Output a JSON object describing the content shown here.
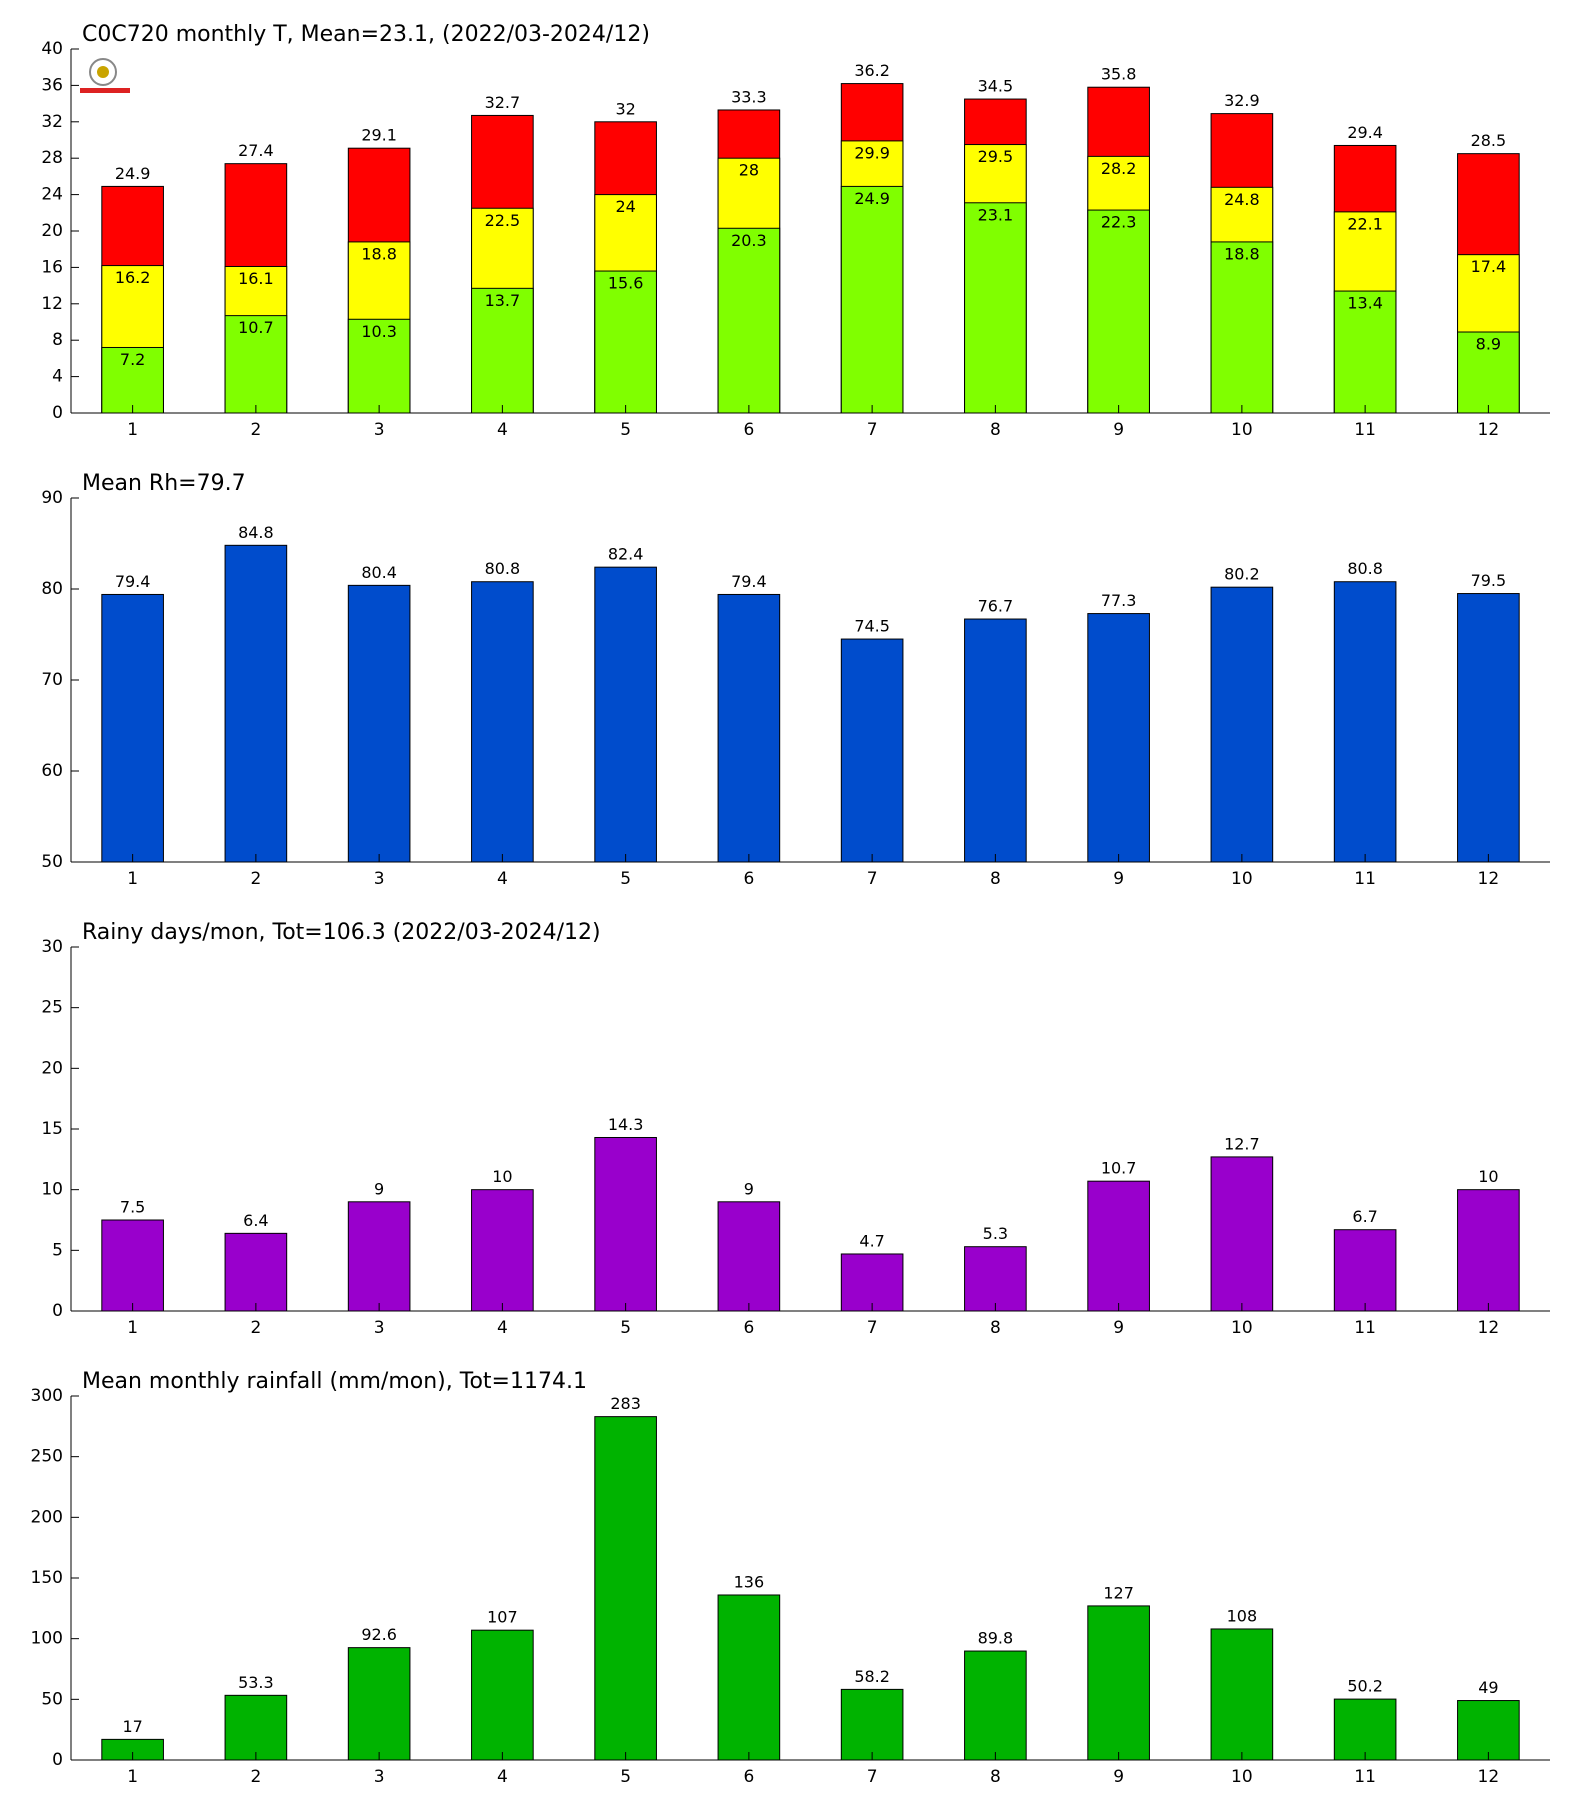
{
  "chart_data": [
    {
      "type": "bar",
      "title": "C0C720 monthly T, Mean=23.1, (2022/03-2024/12)",
      "categories": [
        "1",
        "2",
        "3",
        "4",
        "5",
        "6",
        "7",
        "8",
        "9",
        "10",
        "11",
        "12"
      ],
      "series": [
        {
          "color": "#80ff00",
          "values": [
            7.2,
            10.7,
            10.3,
            13.7,
            15.6,
            20.3,
            24.9,
            23.1,
            22.3,
            18.8,
            13.4,
            8.9
          ]
        },
        {
          "color": "#ffff00",
          "values": [
            16.2,
            16.1,
            18.8,
            22.5,
            24,
            28,
            29.9,
            29.5,
            28.2,
            24.8,
            22.1,
            17.4
          ]
        },
        {
          "color": "#ff0000",
          "values": [
            24.9,
            27.4,
            29.1,
            32.7,
            32,
            33.3,
            36.2,
            34.5,
            35.8,
            32.9,
            29.4,
            28.5
          ]
        }
      ],
      "ylim": [
        0,
        40
      ],
      "yticks": [
        0,
        4,
        8,
        12,
        16,
        20,
        24,
        28,
        32,
        36,
        40
      ]
    },
    {
      "type": "bar",
      "title": "Mean Rh=79.7",
      "categories": [
        "1",
        "2",
        "3",
        "4",
        "5",
        "6",
        "7",
        "8",
        "9",
        "10",
        "11",
        "12"
      ],
      "series": [
        {
          "color": "#004ccc",
          "values": [
            79.4,
            84.8,
            80.4,
            80.8,
            82.4,
            79.4,
            74.5,
            76.7,
            77.3,
            80.2,
            80.8,
            79.5
          ]
        }
      ],
      "ylim": [
        50,
        90
      ],
      "yticks": [
        50,
        60,
        70,
        80,
        90
      ]
    },
    {
      "type": "bar",
      "title": "Rainy days/mon, Tot=106.3 (2022/03-2024/12)",
      "categories": [
        "1",
        "2",
        "3",
        "4",
        "5",
        "6",
        "7",
        "8",
        "9",
        "10",
        "11",
        "12"
      ],
      "series": [
        {
          "color": "#9900cc",
          "values": [
            7.5,
            6.4,
            9,
            10,
            14.3,
            9,
            4.7,
            5.3,
            10.7,
            12.7,
            6.7,
            10
          ]
        }
      ],
      "ylim": [
        0,
        30
      ],
      "yticks": [
        0,
        5,
        10,
        15,
        20,
        25,
        30
      ]
    },
    {
      "type": "bar",
      "title": "Mean monthly rainfall (mm/mon), Tot=1174.1",
      "categories": [
        "1",
        "2",
        "3",
        "4",
        "5",
        "6",
        "7",
        "8",
        "9",
        "10",
        "11",
        "12"
      ],
      "series": [
        {
          "color": "#00b300",
          "values": [
            17,
            53.3,
            92.6,
            107,
            283,
            136,
            58.2,
            89.8,
            127,
            108,
            50.2,
            49
          ]
        }
      ],
      "ylim": [
        0,
        300
      ],
      "yticks": [
        0,
        50,
        100,
        150,
        200,
        250,
        300
      ]
    }
  ]
}
